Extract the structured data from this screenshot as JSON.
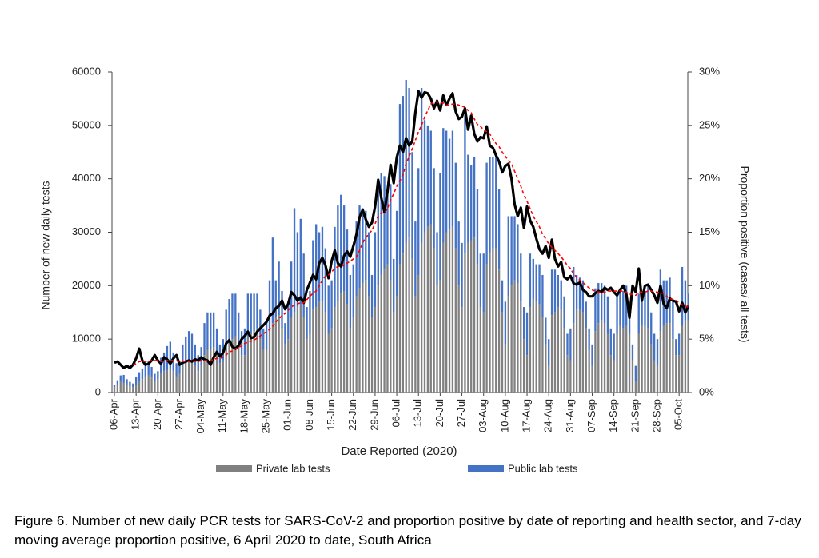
{
  "chart_data": {
    "type": "bar",
    "stacked": true,
    "x_label": "Date Reported (2020)",
    "y_label": "Number of new daily tests",
    "y2_label": "Proportion positive (cases/ all tests)",
    "ylim": [
      0,
      60000
    ],
    "yticks": [
      0,
      10000,
      20000,
      30000,
      40000,
      50000,
      60000
    ],
    "y2lim": [
      0,
      30
    ],
    "y2ticks": [
      {
        "value": 0,
        "label": "0%"
      },
      {
        "value": 5,
        "label": "5%"
      },
      {
        "value": 10,
        "label": "10%"
      },
      {
        "value": 15,
        "label": "15%"
      },
      {
        "value": 20,
        "label": "20%"
      },
      {
        "value": 25,
        "label": "25%"
      },
      {
        "value": 30,
        "label": "30%"
      }
    ],
    "grid": false,
    "categories": [
      "06-Apr",
      null,
      null,
      null,
      null,
      null,
      null,
      "13-Apr",
      null,
      null,
      null,
      null,
      null,
      null,
      "20-Apr",
      null,
      null,
      null,
      null,
      null,
      null,
      "27-Apr",
      null,
      null,
      null,
      null,
      null,
      null,
      "04-May",
      null,
      null,
      null,
      null,
      null,
      null,
      "11-May",
      null,
      null,
      null,
      null,
      null,
      null,
      "18-May",
      null,
      null,
      null,
      null,
      null,
      null,
      "25-May",
      null,
      null,
      null,
      null,
      null,
      null,
      "01-Jun",
      null,
      null,
      null,
      null,
      null,
      null,
      "08-Jun",
      null,
      null,
      null,
      null,
      null,
      null,
      "15-Jun",
      null,
      null,
      null,
      null,
      null,
      null,
      "22-Jun",
      null,
      null,
      null,
      null,
      null,
      null,
      "29-Jun",
      null,
      null,
      null,
      null,
      null,
      null,
      "06-Jul",
      null,
      null,
      null,
      null,
      null,
      null,
      "13-Jul",
      null,
      null,
      null,
      null,
      null,
      null,
      "20-Jul",
      null,
      null,
      null,
      null,
      null,
      null,
      "27-Jul",
      null,
      null,
      null,
      null,
      null,
      null,
      "03-Aug",
      null,
      null,
      null,
      null,
      null,
      null,
      "10-Aug",
      null,
      null,
      null,
      null,
      null,
      null,
      "17-Aug",
      null,
      null,
      null,
      null,
      null,
      null,
      "24-Aug",
      null,
      null,
      null,
      null,
      null,
      null,
      "31-Aug",
      null,
      null,
      null,
      null,
      null,
      null,
      "07-Sep",
      null,
      null,
      null,
      null,
      null,
      null,
      "14-Sep",
      null,
      null,
      null,
      null,
      null,
      null,
      "21-Sep",
      null,
      null,
      null,
      null,
      null,
      null,
      "28-Sep",
      null,
      null,
      null,
      null,
      null,
      null,
      "05-Oct",
      null,
      null,
      null
    ],
    "series": [
      {
        "name": "Private lab tests",
        "color": "#808080",
        "values": [
          1000,
          1500,
          2000,
          1800,
          1500,
          1200,
          1000,
          1500,
          2000,
          2500,
          3000,
          3200,
          2800,
          2000,
          2500,
          3500,
          4000,
          4200,
          4500,
          4000,
          3000,
          3500,
          5000,
          5500,
          6000,
          6000,
          5000,
          4000,
          5000,
          7000,
          8000,
          8000,
          8500,
          7000,
          5500,
          6000,
          8500,
          9500,
          10000,
          10500,
          9000,
          7000,
          7000,
          10500,
          11000,
          11500,
          12000,
          10000,
          8000,
          8000,
          12000,
          13000,
          14000,
          14500,
          12000,
          9000,
          10000,
          14000,
          15000,
          16000,
          16500,
          14000,
          10000,
          11000,
          15500,
          16000,
          17000,
          17000,
          15000,
          11000,
          12000,
          16000,
          17000,
          18500,
          19000,
          16500,
          12000,
          14000,
          18000,
          19500,
          20500,
          21000,
          18000,
          14000,
          16000,
          20000,
          22000,
          23000,
          24000,
          21000,
          15000,
          18000,
          24000,
          26000,
          28000,
          29000,
          25000,
          18000,
          22000,
          28000,
          30000,
          31000,
          31500,
          27000,
          20000,
          21000,
          28000,
          30000,
          30500,
          31000,
          27000,
          20000,
          16000,
          26000,
          28000,
          28500,
          29000,
          24000,
          16000,
          15000,
          24000,
          26000,
          27000,
          27000,
          23000,
          15000,
          9000,
          18000,
          20000,
          21000,
          20500,
          17000,
          10000,
          7000,
          16000,
          17500,
          17000,
          16500,
          14000,
          9000,
          5000,
          14500,
          15000,
          16000,
          15500,
          12000,
          7000,
          6000,
          13000,
          15500,
          15500,
          15000,
          12000,
          8000,
          5000,
          11500,
          13000,
          13500,
          13000,
          11000,
          7000,
          6000,
          11000,
          12500,
          12000,
          12500,
          11000,
          6000,
          2000,
          11000,
          12500,
          12500,
          12000,
          9000,
          6000,
          5000,
          11500,
          12500,
          13000,
          13000,
          10000,
          7000,
          7000,
          12500,
          13500,
          13500
        ]
      },
      {
        "name": "Public lab tests",
        "color": "#4472c4",
        "values": [
          500,
          800,
          1200,
          1500,
          1000,
          800,
          700,
          1500,
          1800,
          2000,
          2500,
          2800,
          2000,
          1500,
          1500,
          3000,
          3500,
          4500,
          5000,
          3500,
          2500,
          2500,
          4000,
          5000,
          5500,
          5000,
          4000,
          3000,
          3500,
          6000,
          7000,
          7000,
          6500,
          5000,
          3500,
          4000,
          7000,
          8000,
          8500,
          8000,
          6000,
          4500,
          5000,
          8000,
          7500,
          7000,
          6500,
          5500,
          4000,
          5000,
          9000,
          16000,
          7000,
          10000,
          7000,
          4000,
          7000,
          10500,
          19500,
          14000,
          16000,
          12000,
          6000,
          8000,
          13000,
          15500,
          13000,
          14000,
          12000,
          9000,
          9000,
          15000,
          18000,
          18500,
          16000,
          14000,
          10000,
          10000,
          14000,
          15500,
          14000,
          13000,
          12000,
          8000,
          14000,
          20000,
          19000,
          17500,
          14000,
          18000,
          10000,
          16000,
          30000,
          29500,
          30500,
          28000,
          20000,
          14000,
          20000,
          29000,
          21000,
          19000,
          17500,
          15000,
          10000,
          20000,
          21500,
          19000,
          17000,
          18000,
          16000,
          12000,
          12000,
          26000,
          16500,
          14000,
          15000,
          14000,
          10000,
          11000,
          19000,
          18000,
          17000,
          17000,
          15000,
          6000,
          8000,
          15000,
          13000,
          12000,
          11000,
          9000,
          6000,
          8000,
          10000,
          7500,
          7000,
          7500,
          8000,
          5000,
          5000,
          8500,
          8000,
          6000,
          5500,
          6000,
          4000,
          6000,
          10500,
          6500,
          6000,
          6000,
          5000,
          4000,
          4000,
          8000,
          7500,
          7000,
          7000,
          7000,
          5000,
          5000,
          7500,
          7000,
          7000,
          7500,
          6000,
          3000,
          3000,
          7500,
          6500,
          6500,
          8000,
          6000,
          5000,
          5000,
          11500,
          8500,
          8000,
          8500,
          7000,
          3000,
          4000,
          11000,
          7500,
          5000
        ]
      },
      {
        "type": "line",
        "axis": "y2",
        "color": "#000000",
        "values": [
          2.8,
          2.9,
          2.6,
          2.3,
          2.5,
          2.3,
          2.6,
          3.2,
          4.1,
          3.0,
          2.6,
          2.7,
          3.0,
          3.5,
          3.0,
          2.7,
          3.3,
          3.1,
          2.7,
          3.2,
          3.5,
          2.6,
          2.8,
          2.9,
          3.0,
          2.9,
          3.1,
          3.0,
          3.3,
          3.1,
          3.0,
          2.6,
          3.3,
          3.8,
          3.4,
          3.7,
          4.6,
          4.9,
          4.3,
          4.1,
          4.4,
          5.0,
          5.3,
          5.7,
          5.1,
          5.2,
          5.7,
          6.0,
          6.3,
          6.6,
          7.2,
          7.4,
          7.9,
          8.1,
          8.6,
          7.8,
          8.3,
          9.4,
          9.1,
          8.6,
          8.9,
          8.4,
          9.6,
          10.3,
          11.0,
          10.6,
          12.1,
          12.6,
          11.9,
          10.7,
          12.3,
          13.3,
          12.1,
          11.8,
          12.8,
          13.2,
          12.7,
          13.7,
          14.8,
          16.4,
          17.1,
          16.2,
          15.5,
          15.9,
          17.4,
          19.9,
          18.2,
          16.9,
          18.8,
          21.3,
          19.6,
          22.0,
          23.1,
          22.5,
          23.8,
          23.1,
          23.5,
          26.2,
          28.2,
          27.6,
          28.1,
          28.0,
          27.5,
          26.6,
          27.3,
          26.4,
          27.8,
          26.9,
          27.5,
          28.0,
          26.3,
          25.6,
          25.8,
          26.6,
          24.6,
          25.9,
          24.2,
          23.5,
          23.9,
          23.8,
          24.9,
          23.1,
          22.9,
          22.2,
          21.6,
          20.6,
          21.2,
          21.4,
          20.0,
          17.6,
          16.5,
          17.3,
          15.4,
          17.4,
          16.1,
          15.5,
          14.4,
          13.4,
          13.0,
          13.7,
          12.6,
          14.3,
          12.5,
          11.8,
          12.2,
          10.8,
          10.6,
          10.9,
          10.2,
          10.1,
          10.3,
          9.6,
          9.4,
          9.0,
          9.0,
          9.3,
          9.5,
          9.4,
          9.8,
          9.6,
          9.8,
          9.4,
          9.1,
          9.6,
          10.0,
          9.2,
          7.0,
          10.0,
          9.4,
          11.6,
          8.6,
          10.0,
          10.1,
          9.6,
          9.1,
          8.4,
          10.0,
          8.3,
          7.9,
          8.8,
          8.6,
          8.5,
          7.6,
          8.4,
          7.5,
          8.1
        ]
      },
      {
        "type": "line",
        "axis": "y2",
        "color": "#ff0000",
        "dashed": true,
        "values": [
          null,
          null,
          null,
          null,
          null,
          null,
          2.6,
          2.7,
          2.9,
          2.9,
          2.9,
          2.9,
          3.0,
          3.0,
          3.0,
          2.9,
          2.9,
          3.0,
          3.0,
          3.0,
          3.0,
          2.9,
          2.9,
          2.9,
          2.9,
          2.9,
          2.9,
          2.9,
          3.0,
          3.0,
          3.0,
          3.0,
          3.1,
          3.2,
          3.2,
          3.3,
          3.5,
          3.8,
          3.9,
          4.1,
          4.2,
          4.4,
          4.6,
          4.7,
          4.8,
          4.9,
          5.1,
          5.3,
          5.5,
          5.7,
          5.9,
          6.2,
          6.6,
          6.9,
          7.2,
          7.4,
          7.7,
          8.0,
          8.2,
          8.3,
          8.4,
          8.4,
          8.7,
          9.0,
          9.3,
          9.5,
          10.0,
          10.5,
          10.9,
          11.0,
          11.3,
          11.6,
          11.8,
          11.8,
          11.9,
          12.1,
          12.3,
          12.5,
          12.7,
          13.3,
          14.0,
          14.5,
          14.8,
          15.2,
          15.8,
          16.5,
          16.8,
          16.8,
          17.2,
          18.0,
          18.6,
          19.3,
          19.8,
          20.4,
          21.4,
          22.1,
          22.8,
          23.6,
          24.4,
          25.0,
          25.8,
          26.4,
          27.0,
          27.2,
          27.2,
          27.1,
          27.1,
          26.9,
          26.9,
          27.0,
          27.0,
          26.9,
          26.8,
          26.7,
          26.4,
          26.2,
          25.6,
          25.1,
          24.9,
          24.6,
          24.4,
          24.2,
          23.7,
          23.3,
          23.0,
          22.5,
          22.1,
          21.7,
          21.4,
          20.7,
          20.0,
          19.3,
          18.5,
          17.9,
          17.2,
          16.5,
          16.0,
          15.5,
          14.8,
          14.4,
          13.9,
          13.6,
          13.3,
          13.0,
          12.7,
          12.3,
          11.9,
          11.6,
          11.1,
          10.8,
          10.5,
          10.3,
          10.0,
          9.8,
          9.6,
          9.5,
          9.4,
          9.4,
          9.4,
          9.5,
          9.5,
          9.5,
          9.5,
          9.5,
          9.5,
          9.4,
          9.2,
          9.2,
          9.1,
          9.4,
          9.4,
          9.4,
          9.5,
          9.5,
          9.4,
          9.4,
          9.3,
          9.3,
          9.0,
          8.8,
          8.7,
          8.6,
          8.4,
          8.2,
          8.1,
          8.0
        ]
      }
    ]
  },
  "caption": "Figure 6. Number of new daily PCR tests for SARS-CoV-2 and proportion positive by date of reporting and health sector, and 7-day moving average proportion positive, 6 April 2020 to date, South Africa"
}
